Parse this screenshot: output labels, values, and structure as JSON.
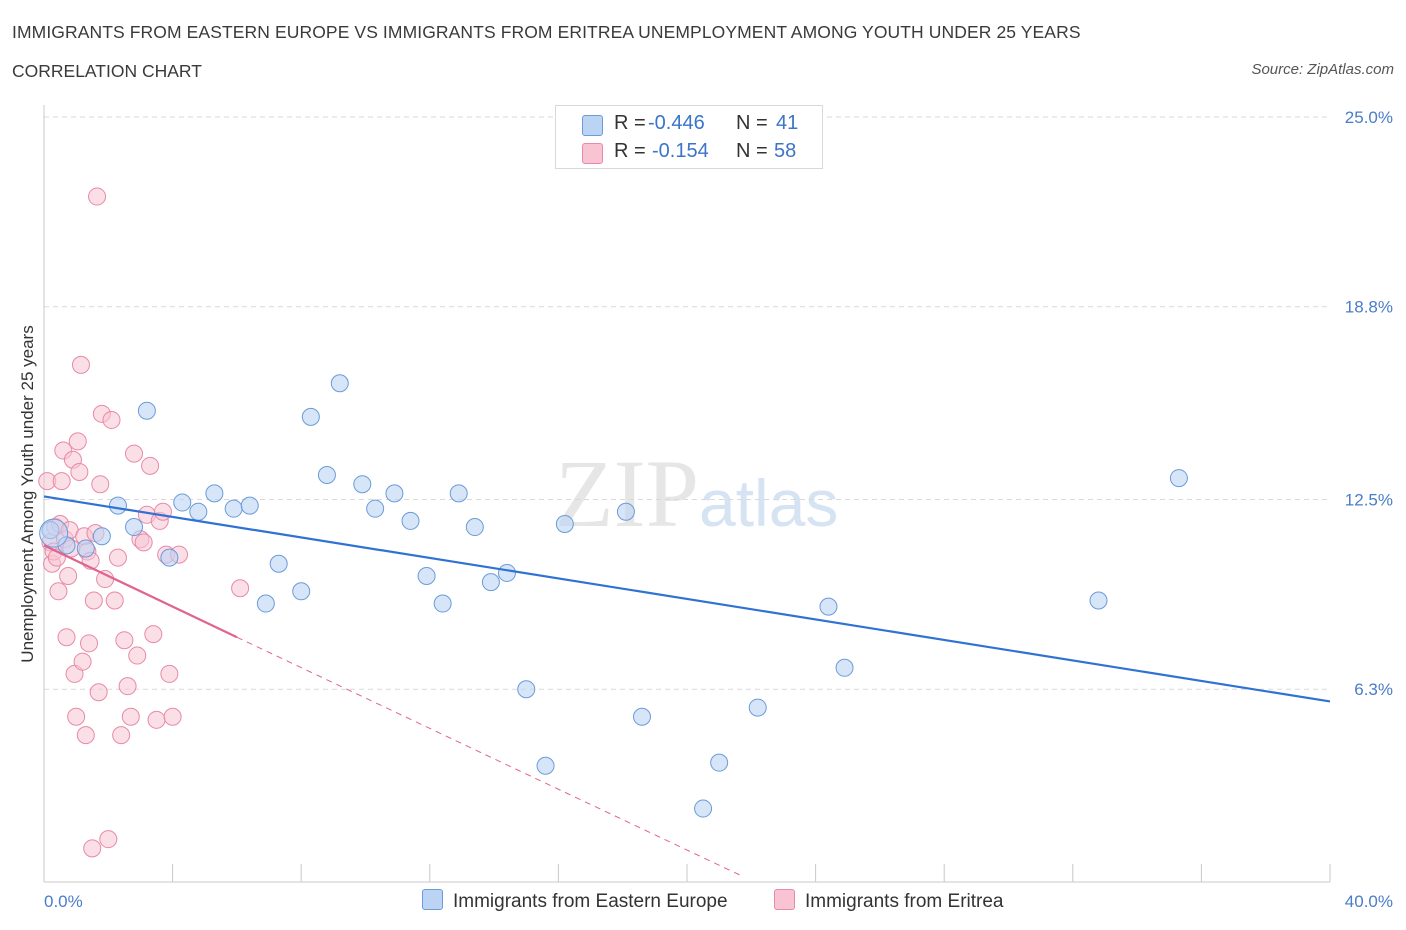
{
  "header": {
    "title": "IMMIGRANTS FROM EASTERN EUROPE VS IMMIGRANTS FROM ERITREA UNEMPLOYMENT AMONG YOUTH UNDER 25 YEARS",
    "subtitle": "CORRELATION CHART",
    "source": "Source: ZipAtlas.com"
  },
  "watermark": {
    "zip": "ZIP",
    "atlas": "atlas"
  },
  "legend": {
    "rows": [
      {
        "r_label": "R =",
        "r_value": "-0.446",
        "n_label": "N =",
        "n_value": "41"
      },
      {
        "r_label": "R =",
        "r_value": "-0.154",
        "n_label": "N =",
        "n_value": "58"
      }
    ]
  },
  "colors": {
    "blue_fill": "#bcd4f4",
    "blue_stroke": "#6b9bd9",
    "blue_line": "#2f72d3",
    "pink_fill": "#f8c4d4",
    "pink_stroke": "#e889a8",
    "pink_line": "#e0648e",
    "grid": "#d9d9d9",
    "tick_text": "#4a7cc9"
  },
  "chart_data": {
    "type": "scatter",
    "title": "IMMIGRANTS FROM EASTERN EUROPE VS IMMIGRANTS FROM ERITREA UNEMPLOYMENT AMONG YOUTH UNDER 25 YEARS",
    "xlabel": "",
    "ylabel": "Unemployment Among Youth under 25 years",
    "xlim": [
      0,
      40
    ],
    "ylim": [
      0,
      25
    ],
    "x_tick_labels": [
      "0.0%",
      "40.0%"
    ],
    "y_ticks": [
      {
        "value": 25.0,
        "label": "25.0%"
      },
      {
        "value": 18.8,
        "label": "18.8%"
      },
      {
        "value": 12.5,
        "label": "12.5%"
      },
      {
        "value": 6.3,
        "label": "6.3%"
      }
    ],
    "grid": true,
    "legend_position": "bottom",
    "series": [
      {
        "name": "Immigrants from Eastern Europe",
        "color": "#6b9bd9",
        "points": [
          [
            0.2,
            11.5
          ],
          [
            0.7,
            11.0
          ],
          [
            1.3,
            10.9
          ],
          [
            1.8,
            11.3
          ],
          [
            2.3,
            12.3
          ],
          [
            2.8,
            11.6
          ],
          [
            3.2,
            15.4
          ],
          [
            3.9,
            10.6
          ],
          [
            4.3,
            12.4
          ],
          [
            4.8,
            12.1
          ],
          [
            5.3,
            12.7
          ],
          [
            5.9,
            12.2
          ],
          [
            6.4,
            12.3
          ],
          [
            6.9,
            9.1
          ],
          [
            7.3,
            10.4
          ],
          [
            8.0,
            9.5
          ],
          [
            8.3,
            15.2
          ],
          [
            8.8,
            13.3
          ],
          [
            9.2,
            16.3
          ],
          [
            9.9,
            13.0
          ],
          [
            10.3,
            12.2
          ],
          [
            10.9,
            12.7
          ],
          [
            11.4,
            11.8
          ],
          [
            11.9,
            10.0
          ],
          [
            12.4,
            9.1
          ],
          [
            12.9,
            12.7
          ],
          [
            13.4,
            11.6
          ],
          [
            13.9,
            9.8
          ],
          [
            14.4,
            10.1
          ],
          [
            15.0,
            6.3
          ],
          [
            15.6,
            3.8
          ],
          [
            16.2,
            11.7
          ],
          [
            18.1,
            12.1
          ],
          [
            18.6,
            5.4
          ],
          [
            20.5,
            2.4
          ],
          [
            21.0,
            3.9
          ],
          [
            22.2,
            5.7
          ],
          [
            24.4,
            9.0
          ],
          [
            24.9,
            7.0
          ],
          [
            32.8,
            9.2
          ],
          [
            35.3,
            13.2
          ]
        ],
        "trend": {
          "x": [
            0,
            40
          ],
          "y": [
            12.6,
            5.9
          ]
        }
      },
      {
        "name": "Immigrants from Eritrea",
        "color": "#e889a8",
        "points": [
          [
            0.1,
            13.1
          ],
          [
            0.2,
            11.1
          ],
          [
            0.25,
            10.4
          ],
          [
            0.3,
            10.8
          ],
          [
            0.35,
            11.6
          ],
          [
            0.4,
            10.6
          ],
          [
            0.45,
            9.5
          ],
          [
            0.5,
            11.7
          ],
          [
            0.55,
            13.1
          ],
          [
            0.6,
            14.1
          ],
          [
            0.65,
            11.2
          ],
          [
            0.7,
            8.0
          ],
          [
            0.75,
            10.0
          ],
          [
            0.8,
            11.5
          ],
          [
            0.85,
            10.9
          ],
          [
            0.9,
            13.8
          ],
          [
            0.95,
            6.8
          ],
          [
            1.0,
            5.4
          ],
          [
            1.05,
            14.4
          ],
          [
            1.1,
            13.4
          ],
          [
            1.15,
            16.9
          ],
          [
            1.2,
            7.2
          ],
          [
            1.25,
            11.3
          ],
          [
            1.3,
            4.8
          ],
          [
            1.35,
            10.8
          ],
          [
            1.4,
            7.8
          ],
          [
            1.45,
            10.5
          ],
          [
            1.5,
            1.1
          ],
          [
            1.55,
            9.2
          ],
          [
            1.6,
            11.4
          ],
          [
            1.65,
            22.4
          ],
          [
            1.7,
            6.2
          ],
          [
            1.75,
            13.0
          ],
          [
            1.8,
            15.3
          ],
          [
            1.9,
            9.9
          ],
          [
            2.0,
            1.4
          ],
          [
            2.1,
            15.1
          ],
          [
            2.2,
            9.2
          ],
          [
            2.3,
            10.6
          ],
          [
            2.4,
            4.8
          ],
          [
            2.5,
            7.9
          ],
          [
            2.6,
            6.4
          ],
          [
            2.7,
            5.4
          ],
          [
            2.8,
            14.0
          ],
          [
            2.9,
            7.4
          ],
          [
            3.0,
            11.2
          ],
          [
            3.1,
            11.1
          ],
          [
            3.2,
            12.0
          ],
          [
            3.3,
            13.6
          ],
          [
            3.4,
            8.1
          ],
          [
            3.5,
            5.3
          ],
          [
            3.6,
            11.8
          ],
          [
            3.7,
            12.1
          ],
          [
            3.8,
            10.7
          ],
          [
            3.9,
            6.8
          ],
          [
            4.0,
            5.4
          ],
          [
            4.2,
            10.7
          ],
          [
            6.1,
            9.6
          ]
        ],
        "trend_solid": {
          "x": [
            0,
            6.0
          ],
          "y": [
            11.0,
            8.0
          ]
        },
        "trend_dashed": {
          "x": [
            6.0,
            21.7
          ],
          "y": [
            8.0,
            0.2
          ]
        }
      }
    ]
  },
  "bottom_legend": {
    "items": [
      {
        "label": "Immigrants from Eastern Europe"
      },
      {
        "label": "Immigrants from Eritrea"
      }
    ]
  }
}
